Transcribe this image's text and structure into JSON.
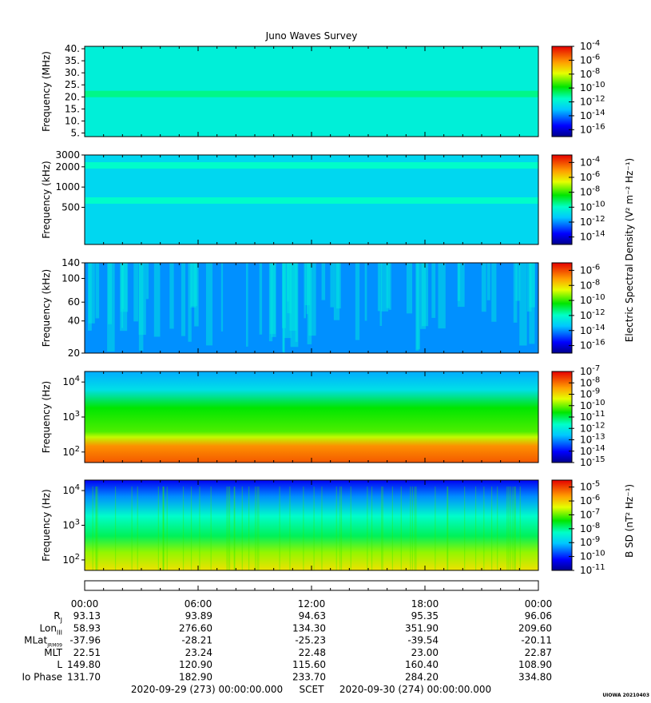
{
  "title": "Juno Waves Survey",
  "chart_data": [
    {
      "type": "heatmap",
      "ylabel": "Frequency (MHz)",
      "yscale": "linear",
      "ylim": [
        3.5,
        41
      ],
      "yticks": [
        "5.",
        "10.",
        "15.",
        "20.",
        "25.",
        "30.",
        "35.",
        "40."
      ],
      "colorbar": {
        "scale": "log",
        "range_exp": [
          -17,
          -4
        ],
        "tick_labels": [
          "10-4",
          "10-6",
          "10-8",
          "10-10",
          "10-12",
          "10-14",
          "10-16"
        ]
      },
      "color_level_exp": -12,
      "bands": [
        {
          "y": 21.2,
          "color_level_exp": -11
        }
      ]
    },
    {
      "type": "heatmap",
      "ylabel": "Frequency (kHz)",
      "yscale": "log",
      "ylim": [
        140,
        3000
      ],
      "yticks": [
        "3000",
        "2000",
        "1000",
        "500"
      ],
      "colorbar": {
        "scale": "log",
        "range_exp": [
          -15,
          -3
        ],
        "tick_labels": [
          "10-4",
          "10-6",
          "10-8",
          "10-10",
          "10-12",
          "10-14"
        ]
      },
      "color_level_exp": -11,
      "bands": [
        {
          "y": 2100,
          "color_level_exp": -10
        },
        {
          "y": 630,
          "color_level_exp": -10
        }
      ]
    },
    {
      "type": "heatmap",
      "ylabel": "Frequency (kHz)",
      "yscale": "log",
      "ylim": [
        20,
        140
      ],
      "yticks": [
        "140",
        "100",
        "60",
        "40",
        "20"
      ],
      "colorbar": {
        "scale": "log",
        "range_exp": [
          -17,
          -5
        ],
        "tick_labels": [
          "10-6",
          "10-8",
          "10-10",
          "10-12",
          "10-14",
          "10-16"
        ]
      },
      "color_level_exp": -14
    },
    {
      "type": "heatmap",
      "ylabel": "Frequency (Hz)",
      "yscale": "log",
      "ylim": [
        50,
        20000
      ],
      "yticks": [
        "10^4",
        "10^3",
        "10^2"
      ],
      "colorbar": {
        "scale": "log",
        "range_exp": [
          -15,
          -7
        ],
        "tick_labels": [
          "10-7",
          "10-8",
          "10-9",
          "10-10",
          "10-11",
          "10-12",
          "10-13",
          "10-14",
          "10-15"
        ]
      },
      "color_level_exp": -11
    },
    {
      "type": "heatmap",
      "ylabel": "Frequency (Hz)",
      "yscale": "log",
      "ylim": [
        50,
        20000
      ],
      "yticks": [
        "10^4",
        "10^3",
        "10^2"
      ],
      "colorbar": {
        "scale": "log",
        "range_exp": [
          -11,
          -4.5
        ],
        "tick_labels": [
          "10-5",
          "10-6",
          "10-7",
          "10-8",
          "10-9",
          "10-10",
          "10-11"
        ]
      },
      "color_level_exp": -8
    }
  ],
  "colorbar_labels": {
    "electric": "Electric Spectral Density (V² m⁻² Hz⁻¹)",
    "magnetic": "B SD (nT² Hz⁻¹)"
  },
  "time_axis": {
    "labels": [
      "00:00",
      "06:00",
      "12:00",
      "18:00",
      "00:00"
    ],
    "rows": [
      {
        "name": "R",
        "sub": "J",
        "values": [
          "93.13",
          "93.89",
          "94.63",
          "95.35",
          "96.06"
        ]
      },
      {
        "name": "Lon",
        "sub": "III",
        "values": [
          "58.93",
          "276.60",
          "134.30",
          "351.90",
          "209.60"
        ]
      },
      {
        "name": "MLat",
        "sub": "JRM09",
        "values": [
          "-37.96",
          "-28.21",
          "-25.23",
          "-39.54",
          "-20.11"
        ]
      },
      {
        "name": "MLT",
        "sub": "",
        "values": [
          "22.51",
          "23.24",
          "22.48",
          "23.00",
          "22.87"
        ]
      },
      {
        "name": "L",
        "sub": "",
        "values": [
          "149.80",
          "120.90",
          "115.60",
          "160.40",
          "108.90"
        ]
      },
      {
        "name": "Io Phase",
        "sub": "",
        "values": [
          "131.70",
          "182.90",
          "233.70",
          "284.20",
          "334.80"
        ]
      }
    ]
  },
  "footer": {
    "start": "2020-09-29 (273) 00:00:00.000",
    "mid": "SCET",
    "end": "2020-09-30 (274) 00:00:00.000"
  },
  "credit": "UIOWA 20210403"
}
